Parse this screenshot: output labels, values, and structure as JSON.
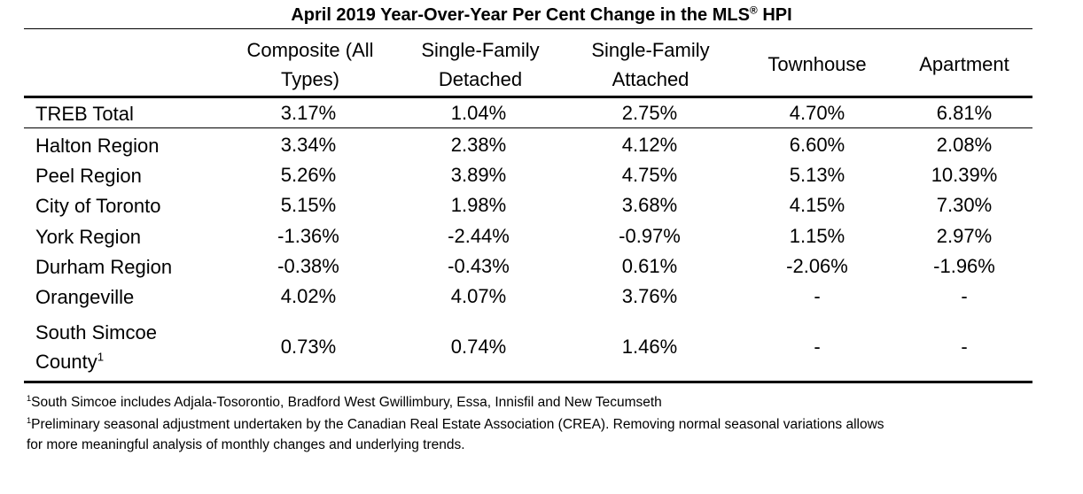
{
  "title": {
    "text": "April 2019 Year-Over-Year Per Cent Change in the MLS",
    "sup": "®",
    "suffix": " HPI"
  },
  "headers": [
    {
      "line1": "Composite (All",
      "line2": "Types)"
    },
    {
      "line1": "Single-Family",
      "line2": "Detached"
    },
    {
      "line1": "Single-Family",
      "line2": "Attached"
    },
    {
      "line1": "Townhouse",
      "line2": ""
    },
    {
      "line1": "Apartment",
      "line2": ""
    }
  ],
  "rows": [
    {
      "label": "TREB Total",
      "values": [
        "3.17%",
        "1.04%",
        "2.75%",
        "4.70%",
        "6.81%"
      ]
    },
    {
      "label": "Halton Region",
      "values": [
        "3.34%",
        "2.38%",
        "4.12%",
        "6.60%",
        "2.08%"
      ]
    },
    {
      "label": "Peel Region",
      "values": [
        "5.26%",
        "3.89%",
        "4.75%",
        "5.13%",
        "10.39%"
      ]
    },
    {
      "label": "City of Toronto",
      "values": [
        "5.15%",
        "1.98%",
        "3.68%",
        "4.15%",
        "7.30%"
      ]
    },
    {
      "label": "York Region",
      "values": [
        "-1.36%",
        "-2.44%",
        "-0.97%",
        "1.15%",
        "2.97%"
      ]
    },
    {
      "label": "Durham Region",
      "values": [
        "-0.38%",
        "-0.43%",
        "0.61%",
        "-2.06%",
        "-1.96%"
      ]
    },
    {
      "label": "Orangeville",
      "values": [
        "4.02%",
        "4.07%",
        "3.76%",
        "-",
        "-"
      ]
    },
    {
      "label": "South Simcoe",
      "label2": "County",
      "label_sup": "1",
      "values": [
        "0.73%",
        "0.74%",
        "1.46%",
        "-",
        "-"
      ]
    }
  ],
  "footnotes": [
    {
      "sup": "1",
      "text": "South Simcoe includes Adjala-Tosorontio, Bradford West Gwillimbury, Essa, Innisfil and New Tecumseth"
    },
    {
      "sup": "1",
      "text": "Preliminary seasonal adjustment undertaken by the Canadian Real Estate Association (CREA).  Removing normal seasonal variations allows",
      "text2": "for more meaningful analysis of monthly changes and underlying trends."
    }
  ]
}
